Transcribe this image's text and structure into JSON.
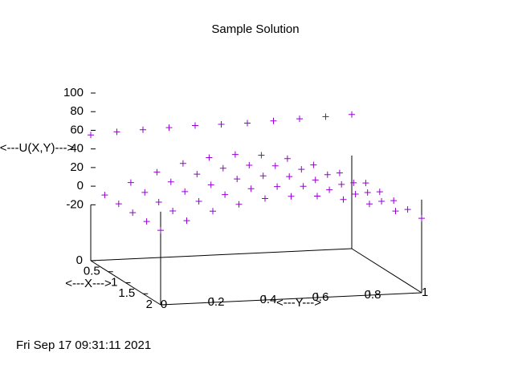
{
  "chart_data": {
    "type": "surface3d",
    "title": "Sample Solution",
    "xlabel": "<---X--->",
    "ylabel": "<---Y--->",
    "zlabel": "<---U(X,Y)--->",
    "xlim": [
      0,
      2
    ],
    "ylim": [
      0,
      1
    ],
    "zlim": [
      -80,
      100
    ],
    "xticks": [
      0,
      0.5,
      1,
      1.5,
      2
    ],
    "yticks": [
      0,
      0.2,
      0.4,
      0.6,
      0.8,
      1
    ],
    "zticks": [
      100,
      80,
      60,
      40,
      20,
      0,
      -20
    ],
    "y": [
      0,
      0.1,
      0.2,
      0.3,
      0.4,
      0.5,
      0.6,
      0.7,
      0.8,
      0.9,
      1
    ],
    "series": [
      {
        "x": 0,
        "color": "#9400d3",
        "values": [
          55,
          57,
          58,
          59,
          60,
          60,
          60,
          61,
          62,
          63,
          64
        ]
      },
      {
        "x": 0.4,
        "color": "#9400d3",
        "values": [
          0,
          12,
          22,
          30,
          35,
          37,
          35,
          30,
          22,
          12,
          0
        ]
      },
      {
        "x": 0.8,
        "color": "#9400d3",
        "values": [
          0,
          11,
          21,
          28,
          33,
          35,
          33,
          28,
          21,
          11,
          0
        ]
      },
      {
        "x": 1.2,
        "color": "#9400d3",
        "values": [
          0,
          10,
          20,
          26,
          31,
          33,
          31,
          26,
          20,
          10,
          0
        ]
      },
      {
        "x": 1.6,
        "color": "#9400d3",
        "values": [
          0,
          10,
          19,
          25,
          30,
          31,
          30,
          25,
          19,
          10,
          0
        ]
      },
      {
        "x": 2,
        "color": "#9400d3",
        "values": [
          0,
          9,
          18,
          24,
          29,
          30,
          29,
          24,
          18,
          9,
          0
        ]
      }
    ]
  },
  "timestamp": "Fri Sep 17 09:31:11 2021"
}
